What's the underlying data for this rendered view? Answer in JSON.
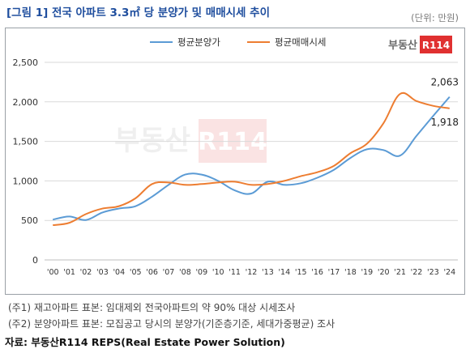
{
  "title": "[그림 1] 전국 아파트 3.3㎡ 당 분양가 및 매매시세 추이",
  "unit": "(단위: 만원)",
  "logo": "부동산R114",
  "watermark": "부동산R114",
  "chart_data": {
    "type": "line",
    "categories": [
      "'00",
      "'01",
      "'02",
      "'03",
      "'04",
      "'05",
      "'06",
      "'07",
      "'08",
      "'09",
      "'10",
      "'11",
      "'12",
      "'13",
      "'14",
      "'15",
      "'16",
      "'17",
      "'18",
      "'19",
      "'20",
      "'21",
      "'22",
      "'23",
      "'24"
    ],
    "ylim": [
      0,
      2500
    ],
    "yticks": [
      "0",
      "500",
      "1,000",
      "1,500",
      "2,000",
      "2,500"
    ],
    "ytick_values": [
      0,
      500,
      1000,
      1500,
      2000,
      2500
    ],
    "grid": true,
    "legend_position": "top",
    "series": [
      {
        "name": "평균분양가",
        "color": "#5b9bd5",
        "values": [
          510,
          550,
          505,
          600,
          650,
          680,
          800,
          950,
          1080,
          1080,
          1000,
          880,
          840,
          990,
          950,
          970,
          1040,
          1140,
          1290,
          1400,
          1390,
          1320,
          1570,
          1820,
          2063
        ]
      },
      {
        "name": "평균매매시세",
        "color": "#ed7d31",
        "values": [
          440,
          470,
          580,
          650,
          680,
          780,
          960,
          980,
          950,
          960,
          980,
          990,
          950,
          960,
          1000,
          1060,
          1110,
          1190,
          1350,
          1470,
          1730,
          2100,
          2010,
          1950,
          1918
        ]
      }
    ],
    "annotations": [
      {
        "series": 0,
        "index": 24,
        "text": "2,063"
      },
      {
        "series": 1,
        "index": 24,
        "text": "1,918"
      }
    ]
  },
  "notes": {
    "note1": "(주1) 재고아파트 표본: 임대제외 전국아파트의 약 90% 대상 시세조사",
    "note2": "(주2) 분양아파트 표본: 모집공고 당시의 분양가(기준층기준, 세대가중평균) 조사"
  },
  "source": "자료: 부동산R114 REPS(Real Estate Power Solution)"
}
